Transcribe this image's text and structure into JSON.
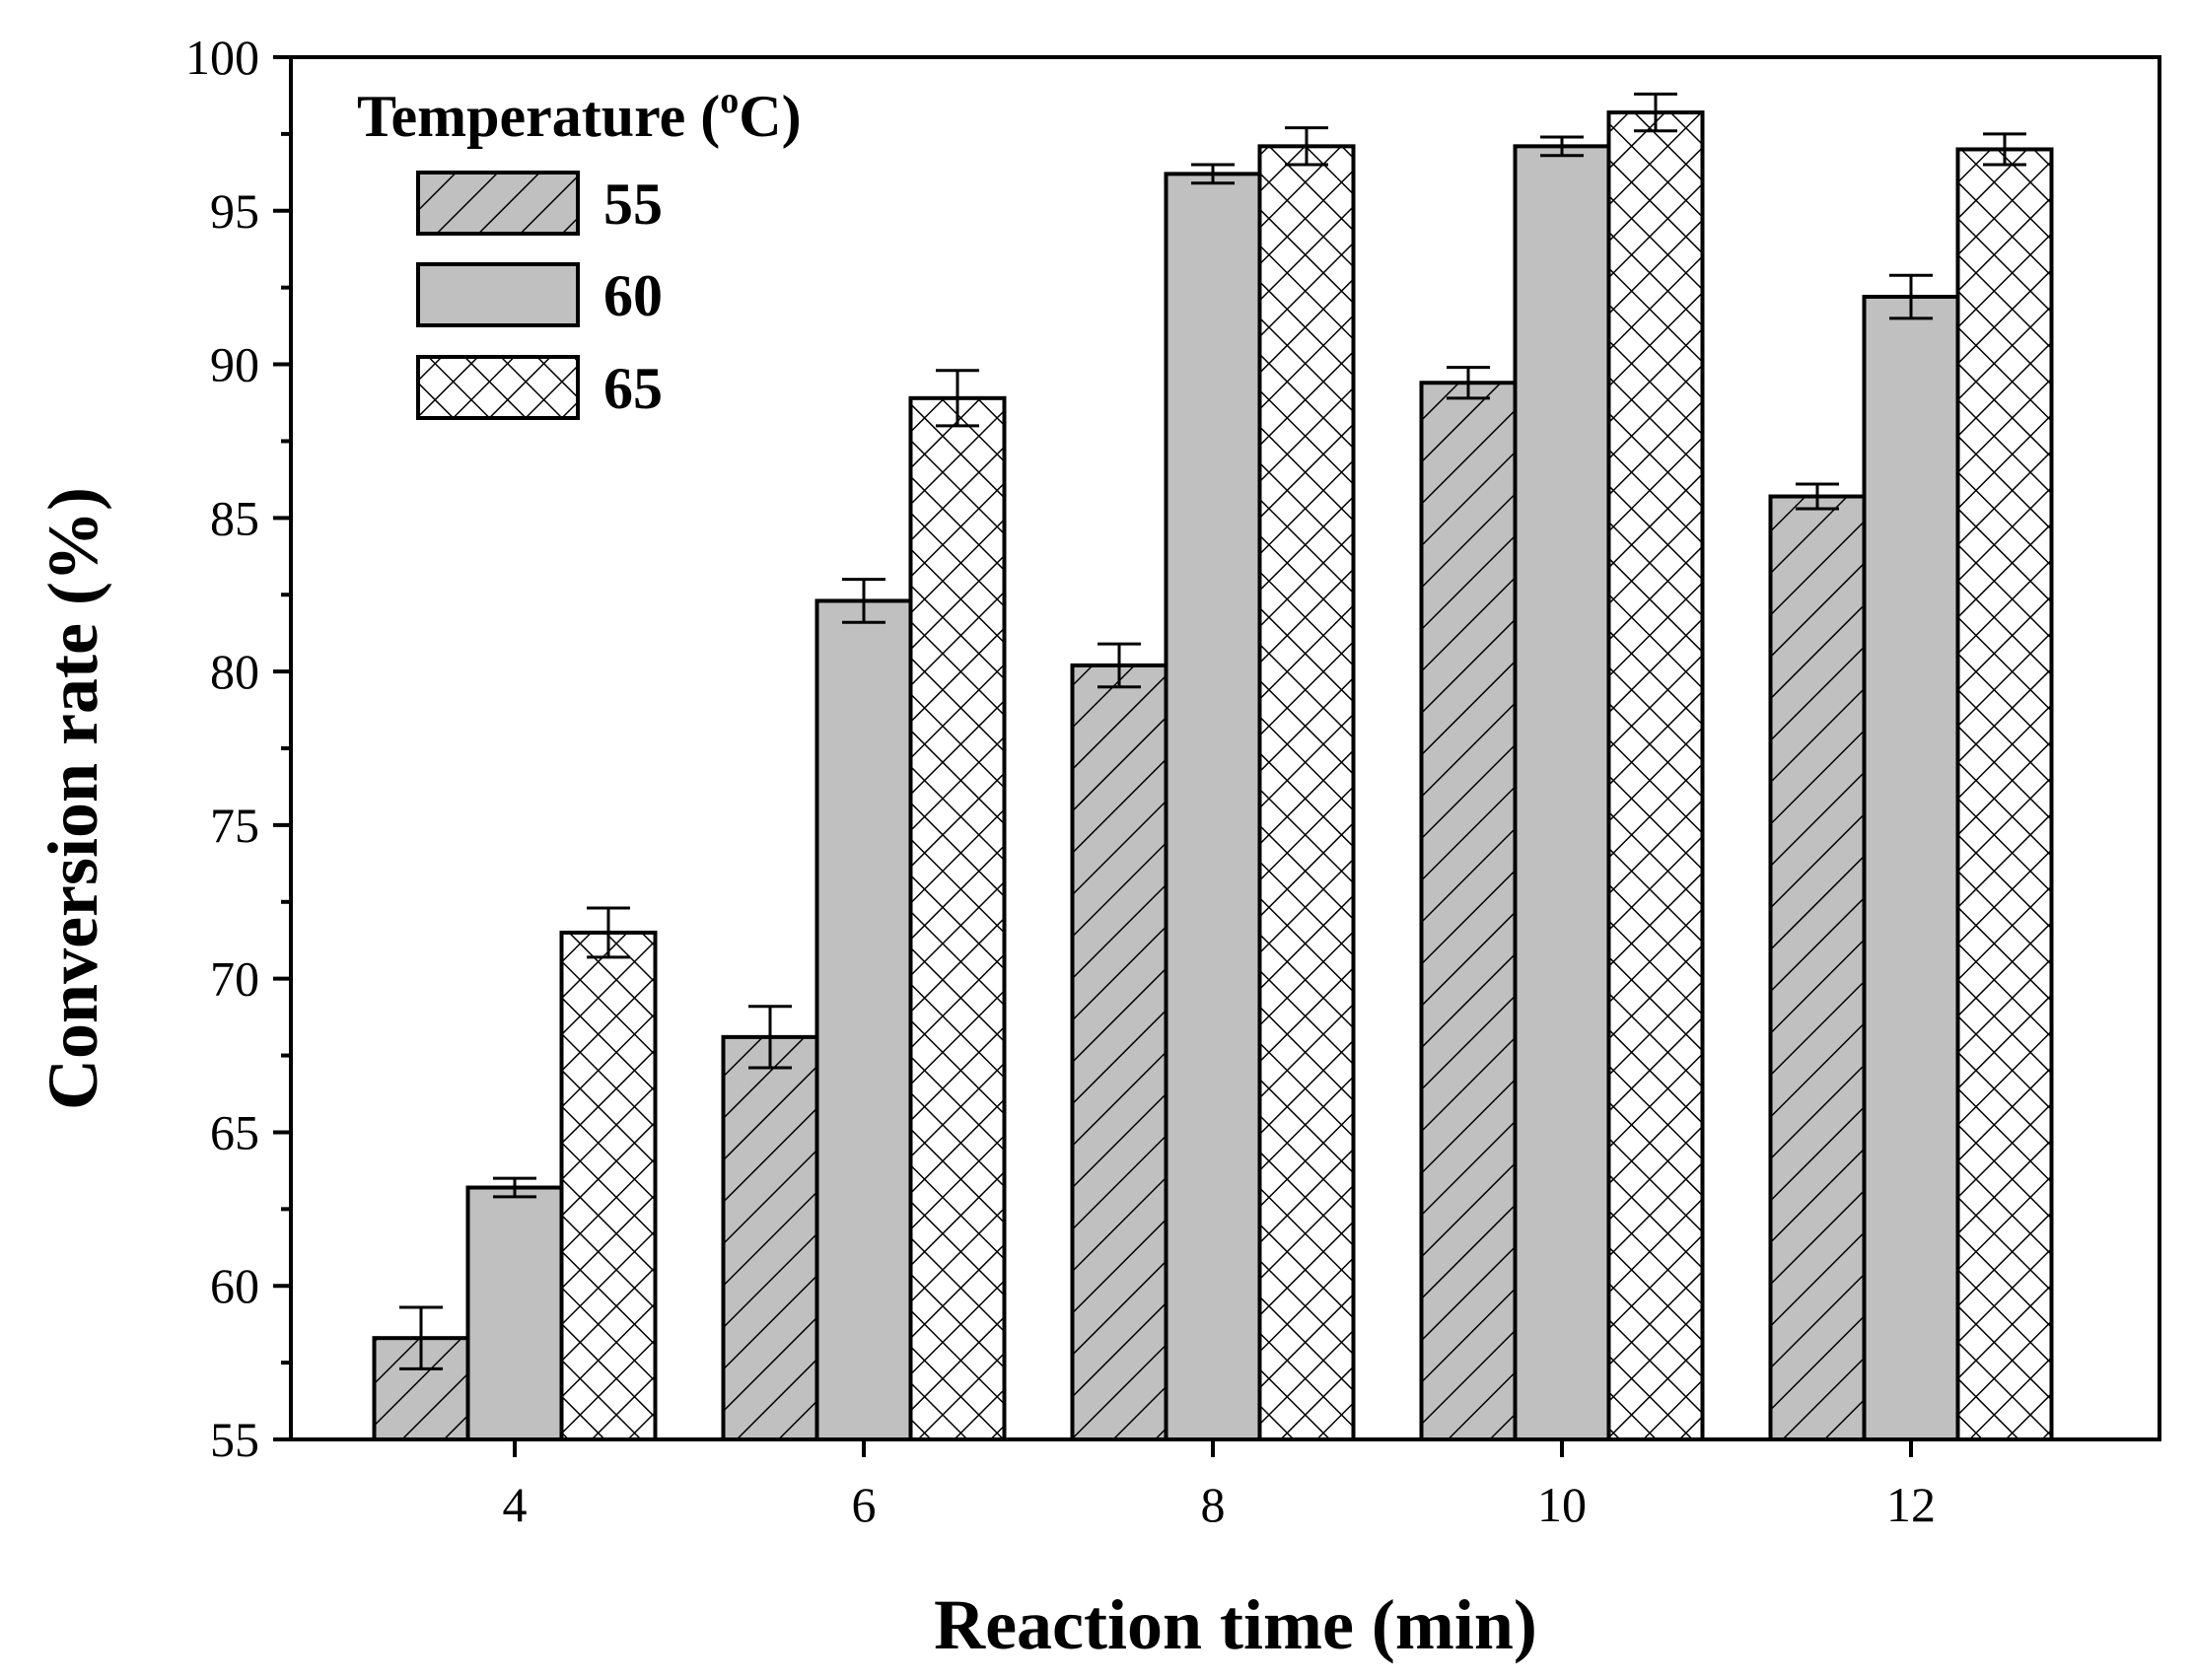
{
  "chart_data": {
    "type": "bar",
    "xlabel": "Reaction time (min)",
    "ylabel": "Conversion rate (%)",
    "ylim": [
      55,
      100
    ],
    "yticks": [
      55,
      60,
      65,
      70,
      75,
      80,
      85,
      90,
      95,
      100
    ],
    "categories": [
      "4",
      "6",
      "8",
      "10",
      "12"
    ],
    "legend": {
      "title": "Temperature (",
      "title_super": "o",
      "title_end": "C)",
      "position": "top-left"
    },
    "series": [
      {
        "name": "55",
        "pattern": "diagonal-hatch",
        "values": [
          58.3,
          68.1,
          80.2,
          89.4,
          85.7
        ],
        "errors": [
          1.0,
          1.0,
          0.7,
          0.5,
          0.4
        ]
      },
      {
        "name": "60",
        "pattern": "solid",
        "values": [
          63.2,
          82.3,
          96.2,
          97.1,
          92.2
        ],
        "errors": [
          0.3,
          0.7,
          0.3,
          0.3,
          0.7
        ]
      },
      {
        "name": "65",
        "pattern": "cross-hatch",
        "values": [
          71.5,
          88.9,
          97.1,
          98.2,
          97.0
        ],
        "errors": [
          0.8,
          0.9,
          0.6,
          0.6,
          0.5
        ]
      }
    ],
    "colors": {
      "bar_fill": "#c0c0c0",
      "hatch_fill": "#ffffff",
      "stroke": "#000000"
    }
  }
}
